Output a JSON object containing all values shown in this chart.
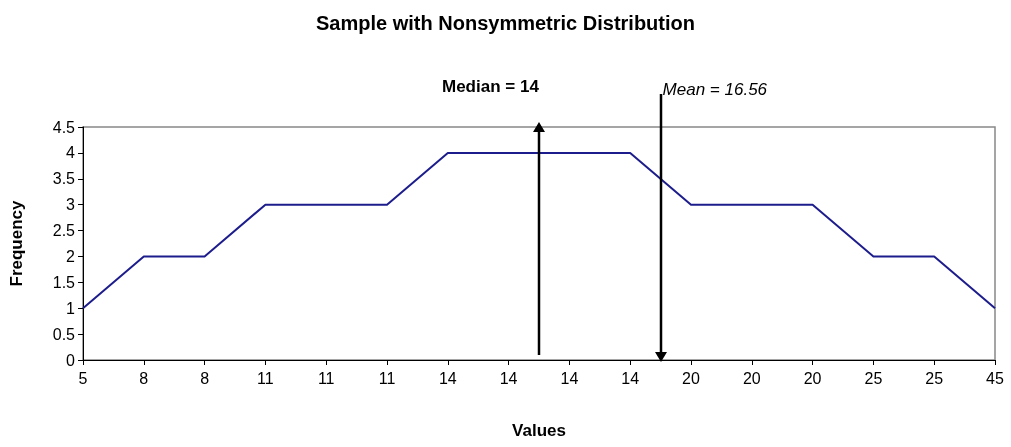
{
  "chart_data": {
    "type": "line",
    "title": "Sample with Nonsymmetric Distribution",
    "xlabel": "Values",
    "ylabel": "Frequency",
    "categories": [
      "5",
      "8",
      "8",
      "11",
      "11",
      "11",
      "14",
      "14",
      "14",
      "14",
      "20",
      "20",
      "20",
      "25",
      "25",
      "45"
    ],
    "series": [
      {
        "color": "#1c1c8c",
        "values": [
          1,
          2,
          2,
          3,
          3,
          3,
          4,
          4,
          4,
          4,
          3,
          3,
          3,
          2,
          2,
          1
        ]
      }
    ],
    "ylim": [
      0,
      4.5
    ],
    "yticks": [
      0,
      0.5,
      1,
      1.5,
      2,
      2.5,
      3,
      3.5,
      4,
      4.5
    ],
    "grid": false,
    "marker": "none",
    "line_style": "solid",
    "annotations": [
      "Median = 14",
      "Mean = 16.56"
    ]
  }
}
